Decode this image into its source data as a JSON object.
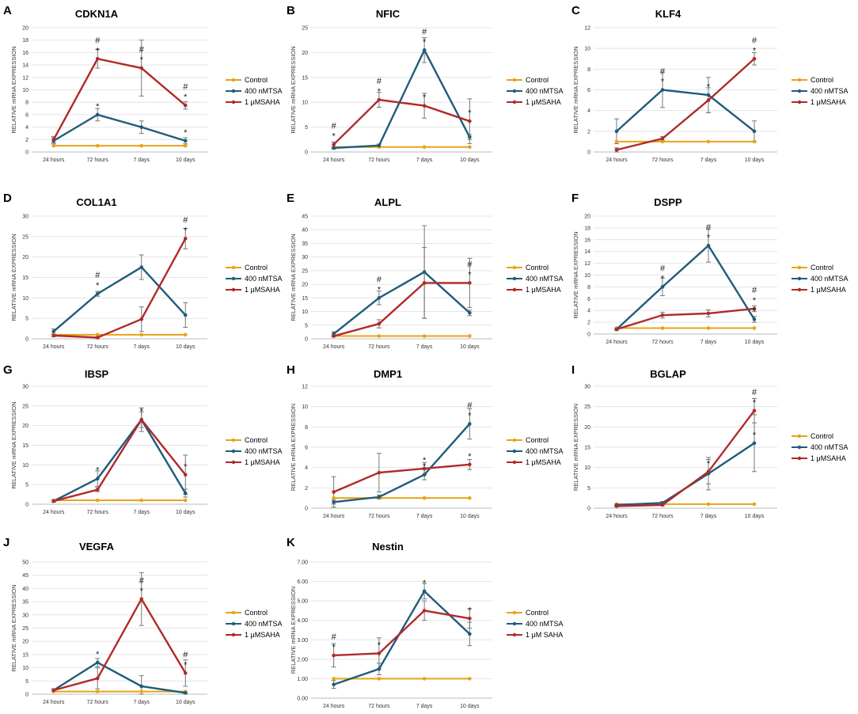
{
  "colors": {
    "control": "#e8a317",
    "tsa": "#1f5c7a",
    "saha": "#b02a2a",
    "grid": "#e4e4e4",
    "axis": "#bbbbbb",
    "errorbar": "#777777"
  },
  "chart_data": [
    {
      "id": "A",
      "title": "CDKN1A",
      "ylabel": "RELATIVE mRNA EXPRESSION",
      "type": "line",
      "categories": [
        "24 hours",
        "72 hours",
        "7 days",
        "10 days"
      ],
      "ylim": [
        0,
        20
      ],
      "yticks": [
        "0",
        "2",
        "4",
        "6",
        "8",
        "10",
        "12",
        "14",
        "16",
        "18",
        "20"
      ],
      "legend": [
        "Control",
        "400 nMTSA",
        "1 μMSAHA"
      ],
      "series": [
        {
          "name": "Control",
          "values": [
            1,
            1,
            1,
            1
          ],
          "err": [
            0,
            0,
            0,
            0
          ]
        },
        {
          "name": "400 nMTSA",
          "values": [
            1.8,
            6,
            4,
            1.8
          ],
          "err": [
            0.5,
            1,
            1,
            0.5
          ]
        },
        {
          "name": "1 μMSAHA",
          "values": [
            2,
            15,
            13.5,
            7.5
          ],
          "err": [
            0.5,
            1.5,
            4.5,
            0.6
          ]
        }
      ],
      "marks": [
        {
          "cat": 1,
          "y": 6,
          "text": "*"
        },
        {
          "cat": 3,
          "y": 1.8,
          "text": "*"
        },
        {
          "cat": 1,
          "y": 15,
          "text": "*"
        },
        {
          "cat": 1,
          "y": 15,
          "text": "#"
        },
        {
          "cat": 2,
          "y": 13.5,
          "text": "*"
        },
        {
          "cat": 2,
          "y": 13.5,
          "text": "#"
        },
        {
          "cat": 3,
          "y": 7.5,
          "text": "*"
        },
        {
          "cat": 3,
          "y": 7.5,
          "text": "#"
        }
      ]
    },
    {
      "id": "B",
      "title": "NFIC",
      "ylabel": "RELATIVE mRNA EXPRESSION",
      "type": "line",
      "categories": [
        "24 hours",
        "72 hours",
        "7 days",
        "10 days"
      ],
      "ylim": [
        0,
        25
      ],
      "yticks": [
        "0",
        "5",
        "10",
        "15",
        "20",
        "25"
      ],
      "legend": [
        "Control",
        "400 nMTSA",
        "1 μMSAHA"
      ],
      "series": [
        {
          "name": "Control",
          "values": [
            1,
            1,
            1,
            1
          ],
          "err": [
            0,
            0,
            0,
            0
          ]
        },
        {
          "name": "400 nMTSA",
          "values": [
            0.8,
            1.3,
            20.5,
            3
          ],
          "err": [
            0.2,
            0.3,
            2.5,
            0.5
          ]
        },
        {
          "name": "1 μMSAHA",
          "values": [
            1.5,
            10.5,
            9.3,
            6.2
          ],
          "err": [
            0.5,
            1.5,
            2.5,
            4.5
          ]
        }
      ],
      "marks": [
        {
          "cat": 0,
          "y": 1.5,
          "text": "*"
        },
        {
          "cat": 0,
          "y": 1.5,
          "text": "#"
        },
        {
          "cat": 1,
          "y": 10.5,
          "text": "*"
        },
        {
          "cat": 1,
          "y": 10.5,
          "text": "#"
        },
        {
          "cat": 2,
          "y": 20.5,
          "text": "*"
        },
        {
          "cat": 2,
          "y": 20.5,
          "text": "#"
        },
        {
          "cat": 2,
          "y": 9.3,
          "text": "*"
        },
        {
          "cat": 3,
          "y": 6.2,
          "text": "*"
        }
      ]
    },
    {
      "id": "C",
      "title": "KLF4",
      "ylabel": "RELATIVE mRNA EXPRESSION",
      "type": "line",
      "categories": [
        "24 hours",
        "72 hours",
        "7 days",
        "10 days"
      ],
      "ylim": [
        0,
        12
      ],
      "yticks": [
        "0",
        "2",
        "4",
        "6",
        "8",
        "10",
        "12"
      ],
      "legend": [
        "Control",
        "400 nMTSA",
        "1 μMSAHA"
      ],
      "series": [
        {
          "name": "Control",
          "values": [
            1,
            1,
            1,
            1
          ],
          "err": [
            0,
            0,
            0,
            0
          ]
        },
        {
          "name": "400 nMTSA",
          "values": [
            2,
            6,
            5.5,
            2
          ],
          "err": [
            1.2,
            1.7,
            1.7,
            1
          ]
        },
        {
          "name": "1 μMSAHA",
          "values": [
            0.2,
            1.3,
            5,
            9
          ],
          "err": [
            0.2,
            0.2,
            1.2,
            0.6
          ]
        }
      ],
      "marks": [
        {
          "cat": 1,
          "y": 6,
          "text": "*"
        },
        {
          "cat": 1,
          "y": 6,
          "text": "#"
        },
        {
          "cat": 2,
          "y": 5.5,
          "text": "*"
        },
        {
          "cat": 3,
          "y": 9,
          "text": "*"
        },
        {
          "cat": 3,
          "y": 9,
          "text": "#"
        }
      ]
    },
    {
      "id": "D",
      "title": "COL1A1",
      "ylabel": "RELATIVE mRNA EXPRESSION",
      "type": "line",
      "categories": [
        "24 hours",
        "72 hours",
        "7 days",
        "10 days"
      ],
      "ylim": [
        0,
        30
      ],
      "yticks": [
        "0",
        "5",
        "10",
        "15",
        "20",
        "25",
        "30"
      ],
      "legend": [
        "Control",
        "400 nMTSA",
        "1 μMSAHA"
      ],
      "series": [
        {
          "name": "Control",
          "values": [
            1,
            1,
            1,
            1
          ],
          "err": [
            0,
            0,
            0,
            0
          ]
        },
        {
          "name": "400 nMTSA",
          "values": [
            1.8,
            11,
            17.5,
            5.8
          ],
          "err": [
            0.6,
            0.6,
            3,
            3
          ]
        },
        {
          "name": "1 μMSAHA",
          "values": [
            0.8,
            0.3,
            4.8,
            24.5
          ],
          "err": [
            0.3,
            0.2,
            3,
            2.5
          ]
        }
      ],
      "marks": [
        {
          "cat": 1,
          "y": 11,
          "text": "*"
        },
        {
          "cat": 1,
          "y": 11,
          "text": "#"
        },
        {
          "cat": 3,
          "y": 24.5,
          "text": "*"
        },
        {
          "cat": 3,
          "y": 24.5,
          "text": "#"
        }
      ]
    },
    {
      "id": "E",
      "title": "ALPL",
      "ylabel": "RELATIVE mRNA EXPRESSION",
      "type": "line",
      "categories": [
        "24 hours",
        "72 hours",
        "7 days",
        "10 days"
      ],
      "ylim": [
        0,
        45
      ],
      "yticks": [
        "0",
        "5",
        "10",
        "15",
        "20",
        "25",
        "30",
        "35",
        "40",
        "45"
      ],
      "legend": [
        "Control",
        "400 nMTSA",
        "1 μMSAHA"
      ],
      "series": [
        {
          "name": "Control",
          "values": [
            1,
            1,
            1,
            1
          ],
          "err": [
            0,
            0,
            0,
            0
          ]
        },
        {
          "name": "400 nMTSA",
          "values": [
            1.8,
            15,
            24.5,
            9.5
          ],
          "err": [
            0.8,
            2.5,
            17,
            1
          ]
        },
        {
          "name": "1 μMSAHA",
          "values": [
            1,
            5.5,
            20.5,
            20.5
          ],
          "err": [
            0.3,
            1.5,
            13,
            9
          ]
        }
      ],
      "marks": [
        {
          "cat": 1,
          "y": 15,
          "text": "*"
        },
        {
          "cat": 1,
          "y": 15,
          "text": "#"
        },
        {
          "cat": 3,
          "y": 20.5,
          "text": "*"
        },
        {
          "cat": 3,
          "y": 20.5,
          "text": "#"
        }
      ]
    },
    {
      "id": "F",
      "title": "DSPP",
      "ylabel": "RELATIVE mRNA EXPRESSION",
      "type": "line",
      "categories": [
        "24 hours",
        "72 hours",
        "7 days",
        "10 days"
      ],
      "ylim": [
        0,
        20
      ],
      "yticks": [
        "0",
        "2",
        "4",
        "6",
        "8",
        "10",
        "12",
        "14",
        "16",
        "18",
        "20"
      ],
      "legend": [
        "Control",
        "400 nMTSA",
        "1 μMSAHA"
      ],
      "series": [
        {
          "name": "Control",
          "values": [
            1,
            1,
            1,
            1
          ],
          "err": [
            0,
            0,
            0,
            0
          ]
        },
        {
          "name": "400 nMTSA",
          "values": [
            0.8,
            8,
            15,
            2.5
          ],
          "err": [
            0.2,
            1.5,
            2.8,
            0.5
          ]
        },
        {
          "name": "1 μMSAHA",
          "values": [
            0.8,
            3.2,
            3.5,
            4.3
          ],
          "err": [
            0.2,
            0.5,
            0.6,
            0.5
          ]
        }
      ],
      "marks": [
        {
          "cat": 1,
          "y": 8,
          "text": "*"
        },
        {
          "cat": 1,
          "y": 8,
          "text": "#"
        },
        {
          "cat": 2,
          "y": 15,
          "text": "*"
        },
        {
          "cat": 2,
          "y": 15,
          "text": "#"
        },
        {
          "cat": 3,
          "y": 4.3,
          "text": "*"
        },
        {
          "cat": 3,
          "y": 4.3,
          "text": "#"
        },
        {
          "cat": 3,
          "y": 2.5,
          "text": "*"
        }
      ]
    },
    {
      "id": "G",
      "title": "IBSP",
      "ylabel": "RELATIVE mRNA EXPRESSION",
      "type": "line",
      "categories": [
        "24 hours",
        "72 hours",
        "7 days",
        "10 days"
      ],
      "ylim": [
        0,
        30
      ],
      "yticks": [
        "0",
        "5",
        "10",
        "15",
        "20",
        "25",
        "30"
      ],
      "legend": [
        "Control",
        "400 nMTSA",
        "1 μMSAHA"
      ],
      "series": [
        {
          "name": "Control",
          "values": [
            1,
            1,
            1,
            1
          ],
          "err": [
            0,
            0,
            0,
            0
          ]
        },
        {
          "name": "400 nMTSA",
          "values": [
            0.8,
            6.5,
            21.5,
            2.8
          ],
          "err": [
            0.3,
            2,
            3,
            1
          ]
        },
        {
          "name": "1 μMSAHA",
          "values": [
            0.8,
            3.7,
            21.5,
            7.5
          ],
          "err": [
            0.3,
            0.5,
            2,
            5
          ]
        }
      ],
      "marks": [
        {
          "cat": 1,
          "y": 6.5,
          "text": "*"
        },
        {
          "cat": 2,
          "y": 21.5,
          "text": "*"
        },
        {
          "cat": 3,
          "y": 7.5,
          "text": "*"
        }
      ]
    },
    {
      "id": "H",
      "title": "DMP1",
      "ylabel": "RELATIVE mRNA EXPRESSION",
      "type": "line",
      "categories": [
        "24 hours",
        "72 hours",
        "7 days",
        "10 days"
      ],
      "ylim": [
        0,
        12
      ],
      "yticks": [
        "0",
        "2",
        "4",
        "6",
        "8",
        "10",
        "12"
      ],
      "legend": [
        "Control",
        "400 nMTSA",
        "1 μMSAHA"
      ],
      "series": [
        {
          "name": "Control",
          "values": [
            1,
            1,
            1,
            1
          ],
          "err": [
            0,
            0,
            0,
            0
          ]
        },
        {
          "name": "400 nMTSA",
          "values": [
            0.6,
            1.1,
            3.3,
            8.3
          ],
          "err": [
            0.2,
            0.2,
            0.5,
            1.5
          ]
        },
        {
          "name": "1 μMSAHA",
          "values": [
            1.6,
            3.5,
            3.9,
            4.3
          ],
          "err": [
            1.5,
            1.9,
            0.6,
            0.5
          ]
        }
      ],
      "marks": [
        {
          "cat": 2,
          "y": 3.3,
          "text": "*"
        },
        {
          "cat": 2,
          "y": 3.9,
          "text": "*"
        },
        {
          "cat": 3,
          "y": 8.3,
          "text": "*"
        },
        {
          "cat": 3,
          "y": 8.3,
          "text": "#"
        },
        {
          "cat": 3,
          "y": 4.3,
          "text": "*"
        }
      ]
    },
    {
      "id": "I",
      "title": "BGLAP",
      "ylabel": "RELATIVE mRNA EXPRESSION",
      "type": "line",
      "categories": [
        "24 hours",
        "72 hours",
        "7 days",
        "10 days"
      ],
      "ylim": [
        0,
        30
      ],
      "yticks": [
        "0",
        "5",
        "10",
        "15",
        "20",
        "25",
        "30"
      ],
      "legend": [
        "Control",
        "400 nMTSA",
        "1 μMSAHA"
      ],
      "series": [
        {
          "name": "Control",
          "values": [
            1,
            1,
            1,
            1
          ],
          "err": [
            0,
            0,
            0,
            0
          ]
        },
        {
          "name": "400 nMTSA",
          "values": [
            0.8,
            1.3,
            8.5,
            16
          ],
          "err": [
            0.2,
            0.3,
            4,
            7
          ]
        },
        {
          "name": "1 μMSAHA",
          "values": [
            0.5,
            0.8,
            9,
            24
          ],
          "err": [
            0.2,
            0.2,
            3,
            3
          ]
        }
      ],
      "marks": [
        {
          "cat": 2,
          "y": 9,
          "text": "*"
        },
        {
          "cat": 3,
          "y": 16,
          "text": "*"
        },
        {
          "cat": 3,
          "y": 24,
          "text": "*"
        },
        {
          "cat": 3,
          "y": 24,
          "text": "#"
        }
      ]
    },
    {
      "id": "J",
      "title": "VEGFA",
      "ylabel": "RELATIVE mRNA EXPRESSION",
      "type": "line",
      "categories": [
        "24 hours",
        "72 hours",
        "7 days",
        "10 days"
      ],
      "ylim": [
        0,
        50
      ],
      "yticks": [
        "0",
        "5",
        "10",
        "15",
        "20",
        "25",
        "30",
        "35",
        "40",
        "45",
        "50"
      ],
      "legend": [
        "Control",
        "400 nMTSA",
        "1 μMSAHA"
      ],
      "series": [
        {
          "name": "Control",
          "values": [
            1,
            1,
            1,
            1
          ],
          "err": [
            0,
            0,
            0,
            0
          ]
        },
        {
          "name": "400 nMTSA",
          "values": [
            1.5,
            12,
            3,
            0.5
          ],
          "err": [
            0.5,
            1.5,
            4,
            0.3
          ]
        },
        {
          "name": "1 μMSAHA",
          "values": [
            1.5,
            6,
            36,
            8
          ],
          "err": [
            0.5,
            4,
            10,
            5
          ]
        }
      ],
      "marks": [
        {
          "cat": 1,
          "y": 12,
          "text": "*"
        },
        {
          "cat": 2,
          "y": 36,
          "text": "*"
        },
        {
          "cat": 2,
          "y": 36,
          "text": "#"
        },
        {
          "cat": 3,
          "y": 8,
          "text": "*"
        },
        {
          "cat": 3,
          "y": 8,
          "text": "#"
        }
      ]
    },
    {
      "id": "K",
      "title": "Nestin",
      "ylabel": "RELATIVE mRNA EXPRESSION",
      "type": "line",
      "categories": [
        "24 hours",
        "72 hours",
        "7 days",
        "10 days"
      ],
      "ylim": [
        0,
        7
      ],
      "yticks": [
        "0.00",
        "1.00",
        "2.00",
        "3.00",
        "4.00",
        "5.00",
        "6.00",
        "7.00"
      ],
      "legend": [
        "Control",
        "400 nMTSA",
        "1 μM SAHA"
      ],
      "series": [
        {
          "name": "Control",
          "values": [
            1,
            1,
            1,
            1
          ],
          "err": [
            0,
            0,
            0,
            0
          ]
        },
        {
          "name": "400 nMTSA",
          "values": [
            0.7,
            1.5,
            5.5,
            3.3
          ],
          "err": [
            0.2,
            0.3,
            0.4,
            0.6
          ]
        },
        {
          "name": "1 μM SAHA",
          "values": [
            2.2,
            2.3,
            4.5,
            4.1
          ],
          "err": [
            0.6,
            0.8,
            0.5,
            0.5
          ]
        }
      ],
      "marks": [
        {
          "cat": 0,
          "y": 2.2,
          "text": "*"
        },
        {
          "cat": 0,
          "y": 2.2,
          "text": "#"
        },
        {
          "cat": 1,
          "y": 2.3,
          "text": "*"
        },
        {
          "cat": 2,
          "y": 5.5,
          "text": "*"
        },
        {
          "cat": 3,
          "y": 4.1,
          "text": "*"
        }
      ]
    }
  ]
}
